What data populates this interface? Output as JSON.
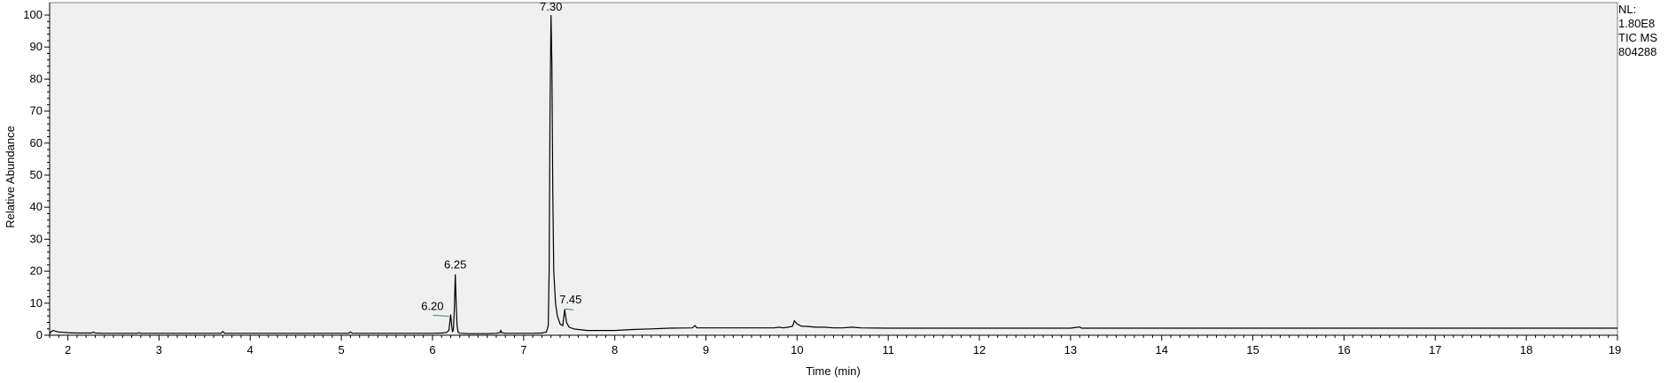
{
  "chart_data": {
    "type": "line",
    "title": "",
    "xlabel": "Time (min)",
    "ylabel": "Relative Abundance",
    "xlim": [
      1.8,
      19
    ],
    "ylim": [
      0,
      100
    ],
    "x_ticks": [
      2,
      3,
      4,
      5,
      6,
      7,
      8,
      9,
      10,
      11,
      12,
      13,
      14,
      15,
      16,
      17,
      18,
      19
    ],
    "y_ticks": [
      0,
      10,
      20,
      30,
      40,
      50,
      60,
      70,
      80,
      90,
      100
    ],
    "grid": false,
    "background_color": "#f0f0f0",
    "line_color": "#000000",
    "baseline_marker_color": "#2e8b57",
    "info": {
      "nl_label": "NL:",
      "nl_value": "1.80E8",
      "scan_type": "TIC  MS",
      "file_id": "804288"
    },
    "peak_labels": [
      {
        "label": "6.20",
        "x": 6.2,
        "y": 6.5
      },
      {
        "label": "6.25",
        "x": 6.25,
        "y": 19.5
      },
      {
        "label": "7.30",
        "x": 7.3,
        "y": 100
      },
      {
        "label": "7.45",
        "x": 7.45,
        "y": 8.5
      }
    ],
    "series": [
      {
        "x": [
          1.8,
          1.82,
          1.84,
          1.86,
          1.9,
          1.95,
          2.0,
          2.1,
          2.2,
          2.26,
          2.28,
          2.3,
          2.4,
          2.6,
          2.76,
          2.78,
          2.8,
          3.0,
          3.2,
          3.4,
          3.6,
          3.68,
          3.7,
          3.72,
          3.8,
          4.0,
          4.2,
          4.4,
          4.6,
          4.8,
          5.0,
          5.08,
          5.1,
          5.12,
          5.3,
          5.5,
          5.7,
          5.9,
          6.0,
          6.1,
          6.15,
          6.18,
          6.19,
          6.2,
          6.21,
          6.22,
          6.23,
          6.24,
          6.25,
          6.26,
          6.27,
          6.28,
          6.3,
          6.4,
          6.5,
          6.6,
          6.7,
          6.74,
          6.75,
          6.76,
          6.8,
          6.9,
          7.0,
          7.1,
          7.2,
          7.25,
          7.27,
          7.28,
          7.29,
          7.3,
          7.31,
          7.32,
          7.33,
          7.35,
          7.37,
          7.4,
          7.43,
          7.45,
          7.47,
          7.5,
          7.55,
          7.6,
          7.7,
          7.8,
          8.0,
          8.2,
          8.4,
          8.6,
          8.85,
          8.88,
          8.9,
          9.0,
          9.2,
          9.4,
          9.6,
          9.75,
          9.8,
          9.85,
          9.9,
          9.95,
          9.97,
          10.0,
          10.05,
          10.1,
          10.2,
          10.3,
          10.4,
          10.5,
          10.6,
          10.7,
          11.0,
          11.5,
          12.0,
          12.5,
          13.0,
          13.1,
          13.12,
          13.14,
          13.3,
          14.0,
          15.0,
          16.0,
          17.0,
          18.0,
          19.0
        ],
        "y": [
          0.5,
          1.2,
          1.5,
          1.3,
          1.0,
          0.9,
          0.8,
          0.7,
          0.7,
          0.7,
          1.0,
          0.7,
          0.6,
          0.6,
          0.6,
          0.8,
          0.6,
          0.6,
          0.6,
          0.6,
          0.6,
          0.6,
          1.2,
          0.6,
          0.6,
          0.6,
          0.6,
          0.6,
          0.6,
          0.6,
          0.6,
          0.6,
          1.0,
          0.6,
          0.6,
          0.6,
          0.6,
          0.6,
          0.6,
          0.7,
          0.8,
          1.5,
          4.0,
          6.5,
          3.0,
          1.0,
          2.0,
          8.0,
          19.0,
          10.0,
          3.0,
          1.0,
          0.6,
          0.5,
          0.5,
          0.5,
          0.6,
          0.8,
          1.5,
          0.8,
          0.6,
          0.6,
          0.6,
          0.6,
          0.7,
          1.0,
          3.0,
          20.0,
          70.0,
          100.0,
          85.0,
          45.0,
          20.0,
          10.0,
          6.0,
          3.5,
          3.0,
          8.0,
          4.0,
          2.5,
          2.0,
          1.8,
          1.5,
          1.5,
          1.5,
          1.8,
          2.0,
          2.2,
          2.3,
          3.0,
          2.3,
          2.3,
          2.3,
          2.3,
          2.3,
          2.3,
          2.5,
          2.3,
          2.5,
          2.8,
          4.5,
          3.5,
          2.8,
          2.8,
          2.5,
          2.5,
          2.3,
          2.3,
          2.5,
          2.3,
          2.2,
          2.2,
          2.2,
          2.2,
          2.2,
          2.6,
          2.2,
          2.2,
          2.2,
          2.2,
          2.2,
          2.2,
          2.2,
          2.2,
          2.2
        ]
      }
    ]
  }
}
